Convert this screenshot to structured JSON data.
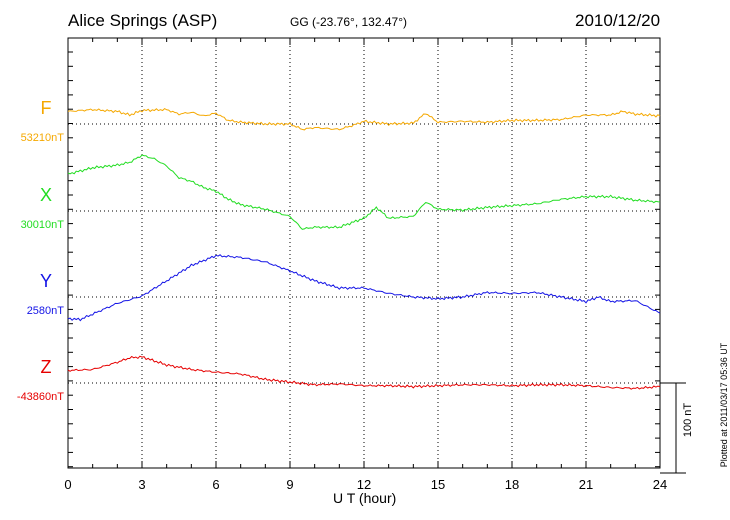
{
  "header": {
    "station": "Alice Springs (ASP)",
    "coords": "GG (-23.76°, 132.47°)",
    "date": "2010/12/20"
  },
  "plotted_text": "Plotted at 2011/03/17 05:36 UT",
  "scale_text": "100 nT",
  "chart_data": {
    "type": "line",
    "title": "Alice Springs (ASP)",
    "xlabel": "U T (hour)",
    "ylabel": "",
    "xlim": [
      0,
      24
    ],
    "x_ticks": [
      0,
      3,
      6,
      9,
      12,
      15,
      18,
      21,
      24
    ],
    "scale_bar_nT": 100,
    "grid": true,
    "series": [
      {
        "name": "F",
        "baseline_label": "53210nT",
        "baseline_nT": 53210,
        "color": "#f5a800",
        "x": [
          0,
          1,
          2,
          2.5,
          3,
          4,
          4.5,
          5,
          5.5,
          6,
          6.5,
          7,
          8,
          9,
          9.5,
          10,
          11,
          11.5,
          12,
          13,
          14,
          14.5,
          15,
          16,
          17,
          18,
          19,
          20,
          21,
          22,
          22.5,
          23,
          24
        ],
        "values": [
          14,
          16,
          14,
          10,
          15,
          16,
          11,
          13,
          9,
          12,
          4,
          2,
          0,
          0,
          -6,
          -4,
          -6,
          -2,
          3,
          0,
          1,
          12,
          2,
          3,
          2,
          4,
          4,
          5,
          10,
          10,
          14,
          11,
          9
        ]
      },
      {
        "name": "X",
        "baseline_label": "30010nT",
        "baseline_nT": 30010,
        "color": "#22dd22",
        "x": [
          0,
          1,
          2,
          2.5,
          3,
          3.5,
          4,
          4.5,
          5,
          5.5,
          6,
          6.5,
          7,
          8,
          9,
          9.5,
          10,
          11,
          12,
          12.5,
          13,
          14,
          14.5,
          15,
          16,
          17,
          18,
          19,
          20,
          21,
          22,
          23,
          24
        ],
        "values": [
          41,
          48,
          51,
          54,
          62,
          58,
          50,
          37,
          33,
          26,
          22,
          13,
          7,
          2,
          -6,
          -20,
          -18,
          -18,
          -8,
          4,
          -8,
          -6,
          10,
          2,
          1,
          4,
          6,
          8,
          13,
          16,
          16,
          12,
          10
        ]
      },
      {
        "name": "Y",
        "baseline_label": "2580nT",
        "baseline_nT": 2580,
        "color": "#1414e6",
        "x": [
          0,
          0.5,
          1,
          2,
          3,
          4,
          5,
          6,
          7,
          8,
          9,
          10,
          11,
          12,
          13,
          14,
          15,
          16,
          17,
          18,
          19,
          20,
          21,
          21.5,
          22,
          23,
          24
        ],
        "values": [
          -24,
          -25,
          -19,
          -7,
          1,
          18,
          35,
          46,
          44,
          39,
          29,
          18,
          10,
          10,
          4,
          0,
          -2,
          0,
          5,
          4,
          5,
          0,
          -5,
          0,
          -5,
          -4,
          -18
        ]
      },
      {
        "name": "Z",
        "baseline_label": "-43860nT",
        "baseline_nT": -43860,
        "color": "#e60000",
        "x": [
          0,
          1,
          2,
          2.5,
          3,
          4,
          5,
          6,
          7,
          8,
          9,
          10,
          11,
          12,
          13,
          14,
          15,
          16,
          17,
          18,
          19,
          20,
          21,
          22,
          23,
          24
        ],
        "values": [
          14,
          15,
          23,
          28,
          29,
          20,
          15,
          12,
          10,
          4,
          1,
          -2,
          -1,
          -3,
          -3,
          -4,
          -3,
          -2,
          -2,
          -3,
          -2,
          -2,
          -3,
          -5,
          -6,
          -4
        ]
      }
    ]
  }
}
